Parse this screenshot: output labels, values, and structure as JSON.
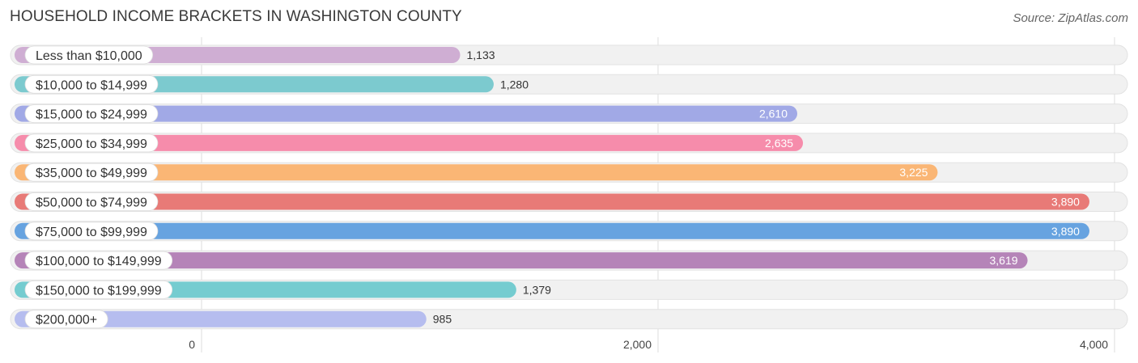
{
  "header": {
    "title": "HOUSEHOLD INCOME BRACKETS IN WASHINGTON COUNTY",
    "source": "Source: ZipAtlas.com"
  },
  "chart_data": {
    "type": "bar",
    "orientation": "horizontal",
    "title": "HOUSEHOLD INCOME BRACKETS IN WASHINGTON COUNTY",
    "xlim": [
      0,
      4000
    ],
    "xticks": [
      0,
      2000,
      4000
    ],
    "xtick_labels": [
      "0",
      "2,000",
      "4,000"
    ],
    "grid": true,
    "categories": [
      "Less than $10,000",
      "$10,000 to $14,999",
      "$15,000 to $24,999",
      "$25,000 to $34,999",
      "$35,000 to $49,999",
      "$50,000 to $74,999",
      "$75,000 to $99,999",
      "$100,000 to $149,999",
      "$150,000 to $199,999",
      "$200,000+"
    ],
    "values": [
      1133,
      1280,
      2610,
      2635,
      3225,
      3890,
      3890,
      3619,
      1379,
      985
    ],
    "value_labels": [
      "1,133",
      "1,280",
      "2,610",
      "2,635",
      "3,225",
      "3,890",
      "3,890",
      "3,619",
      "1,379",
      "985"
    ],
    "colors": [
      "#cfaed3",
      "#7ccacf",
      "#a1a9e6",
      "#f68cab",
      "#fab675",
      "#e87a77",
      "#67a3e0",
      "#b584b8",
      "#75ccd0",
      "#b6bdef"
    ]
  }
}
